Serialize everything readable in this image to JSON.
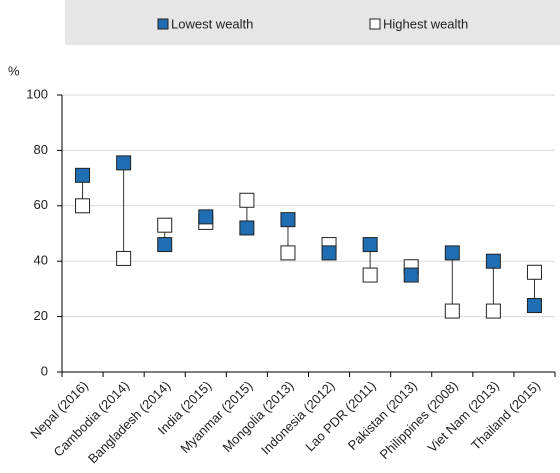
{
  "chart_data": {
    "type": "dot_range",
    "y_label": "%",
    "categories": [
      "Nepal (2016)",
      "Cambodia (2014)",
      "Bangladesh (2014)",
      "India (2015)",
      "Myanmar (2015)",
      "Mongolia (2013)",
      "Indonesia (2012)",
      "Lao PDR (2011)",
      "Pakistan (2013)",
      "Philippines (2008)",
      "Viet Nam (2013)",
      "Thailand (2015)"
    ],
    "series": [
      {
        "name": "Lowest wealth",
        "color": "#1f6db3",
        "values": [
          71,
          75.5,
          46,
          56,
          52,
          55,
          43,
          46,
          35,
          43,
          40,
          24
        ]
      },
      {
        "name": "Highest wealth",
        "color": "#ffffff",
        "values": [
          60,
          41,
          53,
          54,
          62,
          43,
          46,
          35,
          38,
          22,
          22,
          36
        ]
      }
    ],
    "ylim": [
      0,
      100
    ],
    "yticks": [
      0,
      20,
      40,
      60,
      80,
      100
    ],
    "grid": true,
    "legend": "top"
  }
}
